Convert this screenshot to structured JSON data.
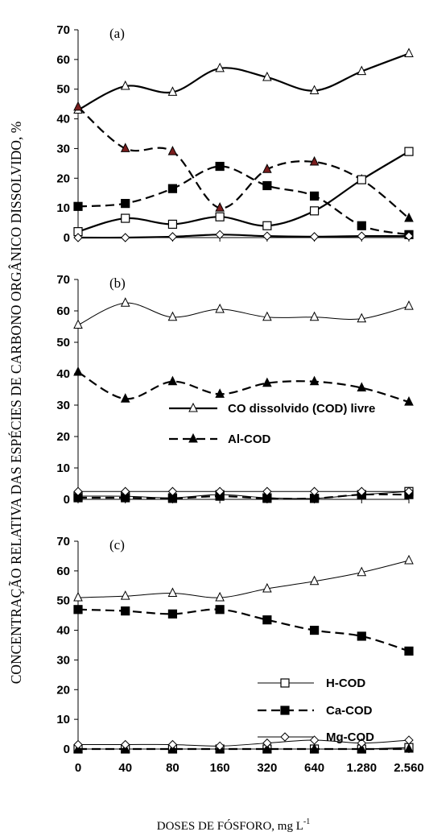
{
  "ylabel": "CONCENTRAÇÃO RELATIVA DAS ESPÉCIES DE CARBONO ORGÂNICO DISSOLVIDO, %",
  "xlabel_main": "DOSES DE FÓSFORO, mg L",
  "xlabel_sup": "-1",
  "categories": [
    "0",
    "40",
    "80",
    "160",
    "320",
    "640",
    "1.280",
    "2.560"
  ],
  "yticks": [
    "0",
    "10",
    "20",
    "30",
    "40",
    "50",
    "60",
    "70"
  ],
  "legend_b": [
    "CO dissolvido (COD) livre",
    "Al-COD"
  ],
  "legend_c": [
    "H-COD",
    "Ca-COD",
    "Mg-COD"
  ],
  "chart_data": [
    {
      "type": "line",
      "panel_label": "(a)",
      "categories": [
        "0",
        "40",
        "80",
        "160",
        "320",
        "640",
        "1.280",
        "2.560"
      ],
      "ylim": [
        0,
        70
      ],
      "series": [
        {
          "name": "CO dissolvido (COD) livre",
          "values": [
            43,
            51,
            49,
            57,
            54,
            49.5,
            56,
            62
          ]
        },
        {
          "name": "Al-COD",
          "values": [
            44,
            30,
            29,
            10,
            23,
            25.5,
            19.5,
            6.5
          ]
        },
        {
          "name": "H-COD",
          "values": [
            2,
            6.5,
            4.5,
            7,
            4,
            9,
            19.5,
            29
          ]
        },
        {
          "name": "Ca-COD",
          "values": [
            10.5,
            11.5,
            16.5,
            24,
            17.5,
            14,
            4,
            1
          ]
        },
        {
          "name": "Mg-COD",
          "values": [
            0,
            0,
            0.3,
            1,
            0.5,
            0.3,
            0.5,
            0.5
          ]
        }
      ]
    },
    {
      "type": "line",
      "panel_label": "(b)",
      "categories": [
        "0",
        "40",
        "80",
        "160",
        "320",
        "640",
        "1.280",
        "2.560"
      ],
      "ylim": [
        0,
        70
      ],
      "series": [
        {
          "name": "CO dissolvido (COD) livre",
          "values": [
            55.5,
            62.5,
            58,
            60.5,
            58,
            58,
            57.5,
            61.5
          ]
        },
        {
          "name": "Al-COD",
          "values": [
            40.5,
            32,
            37.5,
            33.5,
            37,
            37.5,
            35.5,
            31
          ]
        },
        {
          "name": "H-COD",
          "values": [
            1,
            1,
            0.5,
            1.5,
            0.5,
            0.3,
            1.5,
            2.5
          ]
        },
        {
          "name": "Ca-COD",
          "values": [
            0.5,
            0.5,
            0.3,
            1,
            0.3,
            0.3,
            1.5,
            1.5
          ]
        },
        {
          "name": "Mg-COD",
          "values": [
            2.5,
            2.5,
            2.5,
            2.5,
            2.5,
            2.5,
            2.5,
            2.5
          ]
        }
      ]
    },
    {
      "type": "line",
      "panel_label": "(c)",
      "categories": [
        "0",
        "40",
        "80",
        "160",
        "320",
        "640",
        "1.280",
        "2.560"
      ],
      "ylim": [
        0,
        70
      ],
      "series": [
        {
          "name": "CO dissolvido (COD) livre",
          "values": [
            51,
            51.5,
            52.5,
            51,
            54,
            56.5,
            59.5,
            63.5
          ]
        },
        {
          "name": "Ca-COD",
          "values": [
            47,
            46.5,
            45.5,
            47,
            43.5,
            40,
            38,
            33
          ]
        },
        {
          "name": "H-COD",
          "values": [
            0,
            0,
            0,
            0,
            0,
            0,
            0,
            0.5
          ]
        },
        {
          "name": "Al-COD",
          "values": [
            0,
            0,
            0,
            0,
            0,
            0,
            0,
            0
          ]
        },
        {
          "name": "Mg-COD",
          "values": [
            1.5,
            1.5,
            1.5,
            1,
            2,
            3,
            2,
            3
          ]
        }
      ]
    }
  ]
}
